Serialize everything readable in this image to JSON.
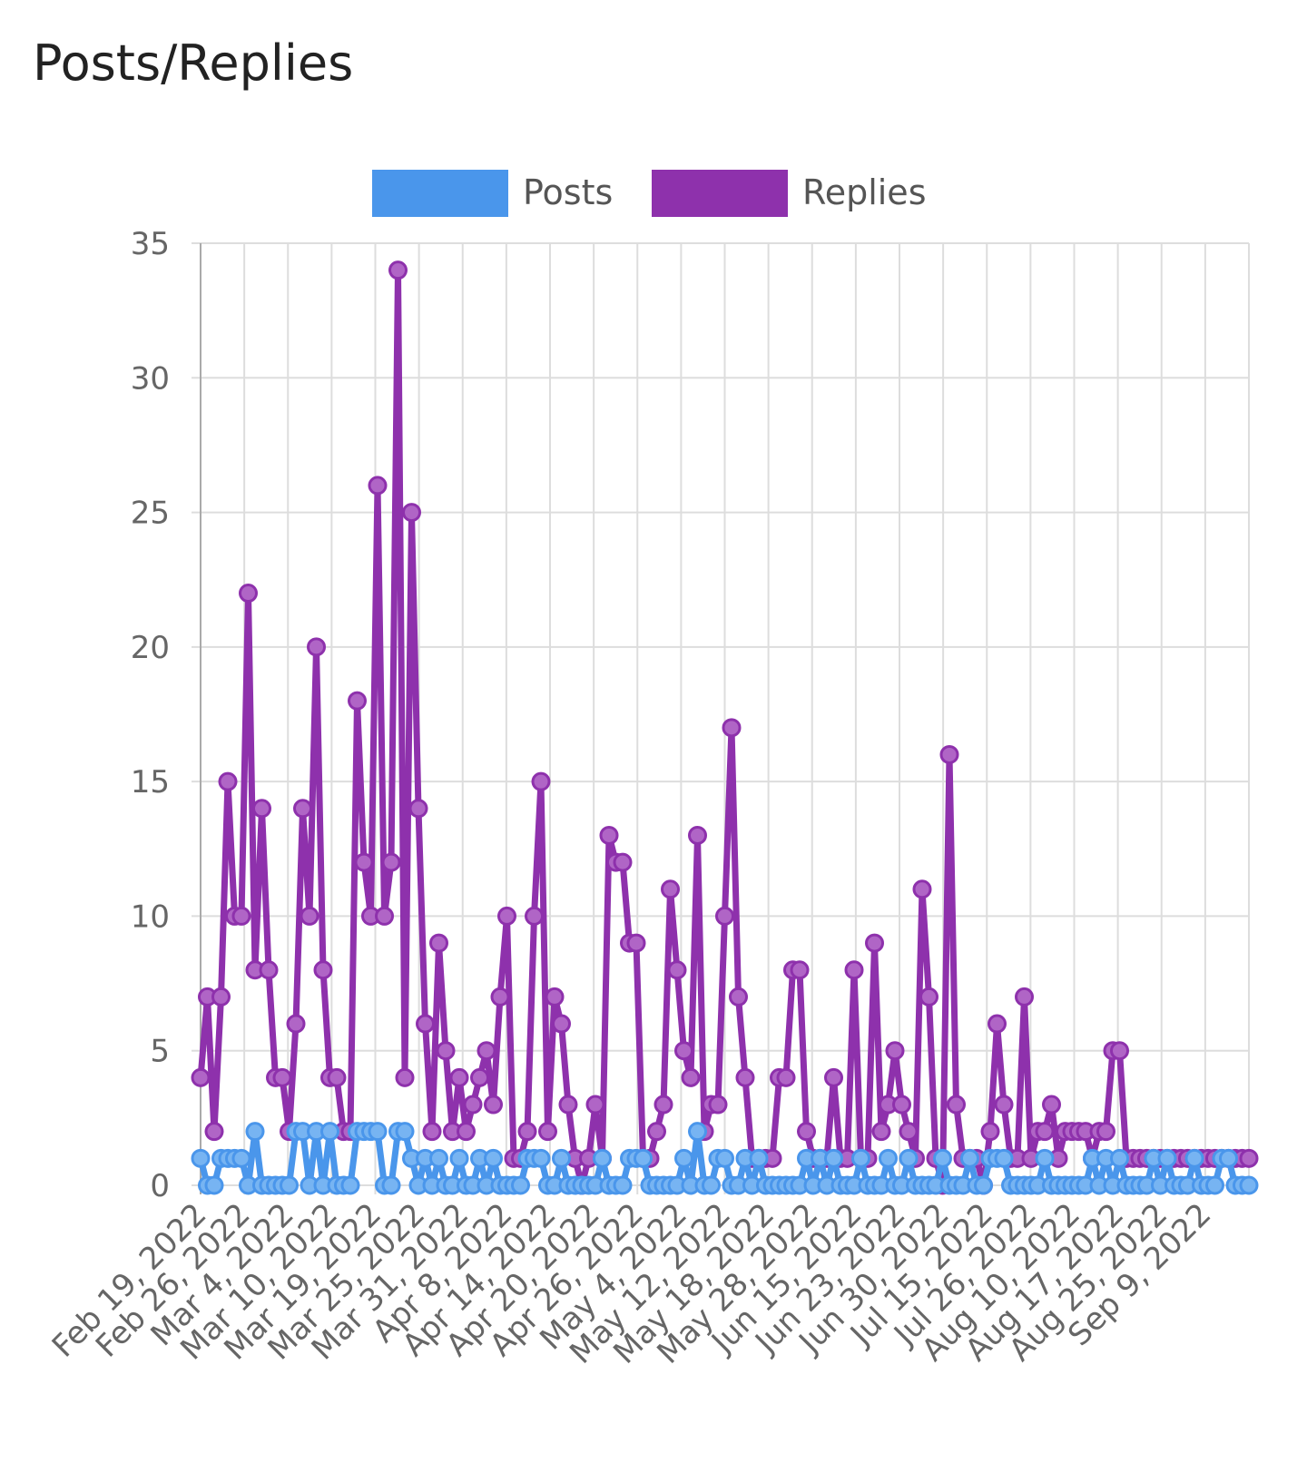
{
  "page": {
    "title": "Posts/Replies"
  },
  "colors": {
    "posts": "#4a96eb",
    "posts_point": "#77b4f2",
    "replies": "#8e31ac",
    "replies_point": "#b065c6",
    "grid": "#dddddd",
    "axis": "#aaaaaa"
  },
  "chart_data": {
    "type": "line",
    "title": "Posts/Replies",
    "legend": {
      "position": "top",
      "entries": [
        "Posts",
        "Replies"
      ]
    },
    "ylim": [
      0,
      35
    ],
    "yticks": [
      0,
      5,
      10,
      15,
      20,
      25,
      30,
      35
    ],
    "grid": true,
    "x_tick_labels": [
      "Feb 19, 2022",
      "Feb 26, 2022",
      "Mar 4, 2022",
      "Mar 10, 2022",
      "Mar 19, 2022",
      "Mar 25, 2022",
      "Mar 31, 2022",
      "Apr 8, 2022",
      "Apr 14, 2022",
      "Apr 20, 2022",
      "Apr 26, 2022",
      "May 4, 2022",
      "May 12, 2022",
      "May 18, 2022",
      "May 28, 2022",
      "Jun 15, 2022",
      "Jun 23, 2022",
      "Jun 30, 2022",
      "Jul 15, 2022",
      "Jul 26, 2022",
      "Aug 10, 2022",
      "Aug 17, 2022",
      "Aug 25, 2022",
      "Sep 9, 2022"
    ],
    "series": [
      {
        "name": "Posts",
        "values": [
          1,
          0,
          0,
          1,
          1,
          1,
          1,
          0,
          2,
          0,
          0,
          0,
          0,
          0,
          2,
          2,
          0,
          2,
          0,
          2,
          0,
          0,
          0,
          2,
          2,
          2,
          2,
          0,
          0,
          2,
          2,
          1,
          0,
          1,
          0,
          1,
          0,
          0,
          1,
          0,
          0,
          1,
          0,
          1,
          0,
          0,
          0,
          0,
          1,
          1,
          1,
          0,
          0,
          1,
          0,
          0,
          0,
          0,
          0,
          1,
          0,
          0,
          0,
          1,
          1,
          1,
          0,
          0,
          0,
          0,
          0,
          1,
          0,
          2,
          0,
          0,
          1,
          1,
          0,
          0,
          1,
          0,
          1,
          0,
          0,
          0,
          0,
          0,
          0,
          1,
          0,
          1,
          0,
          1,
          0,
          0,
          0,
          1,
          0,
          0,
          0,
          1,
          0,
          0,
          1,
          0,
          0,
          0,
          0,
          1,
          0,
          0,
          0,
          1,
          0,
          0,
          1,
          1,
          1,
          0,
          0,
          0,
          0,
          0,
          1,
          0,
          0,
          0,
          0,
          0,
          0,
          1,
          0,
          1,
          0,
          1,
          0,
          0,
          0,
          0,
          1,
          0,
          1,
          0,
          0,
          0,
          1,
          0,
          0,
          0,
          1,
          1,
          0,
          0,
          0
        ]
      },
      {
        "name": "Replies",
        "values": [
          4,
          7,
          2,
          7,
          15,
          10,
          10,
          22,
          8,
          14,
          8,
          4,
          4,
          2,
          6,
          14,
          10,
          20,
          8,
          4,
          4,
          2,
          2,
          18,
          12,
          10,
          26,
          10,
          12,
          34,
          4,
          25,
          14,
          6,
          2,
          9,
          5,
          2,
          4,
          2,
          3,
          4,
          5,
          3,
          7,
          10,
          1,
          1,
          2,
          10,
          15,
          2,
          7,
          6,
          3,
          1,
          0,
          1,
          3,
          1,
          13,
          12,
          12,
          9,
          9,
          1,
          1,
          2,
          3,
          11,
          8,
          5,
          4,
          13,
          2,
          3,
          3,
          10,
          17,
          7,
          4,
          1,
          1,
          1,
          1,
          4,
          4,
          8,
          8,
          2,
          1,
          1,
          1,
          4,
          1,
          1,
          8,
          1,
          1,
          9,
          2,
          3,
          5,
          3,
          2,
          1,
          11,
          7,
          1,
          0,
          16,
          3,
          1,
          1,
          1,
          0,
          2,
          6,
          3,
          1,
          1,
          7,
          1,
          2,
          2,
          3,
          1,
          2,
          2,
          2,
          2,
          1,
          2,
          2,
          5,
          5,
          1,
          1,
          1,
          1,
          1,
          1,
          1,
          1,
          1,
          1,
          1,
          1,
          1,
          1,
          1,
          1,
          1,
          1,
          1
        ]
      }
    ]
  }
}
